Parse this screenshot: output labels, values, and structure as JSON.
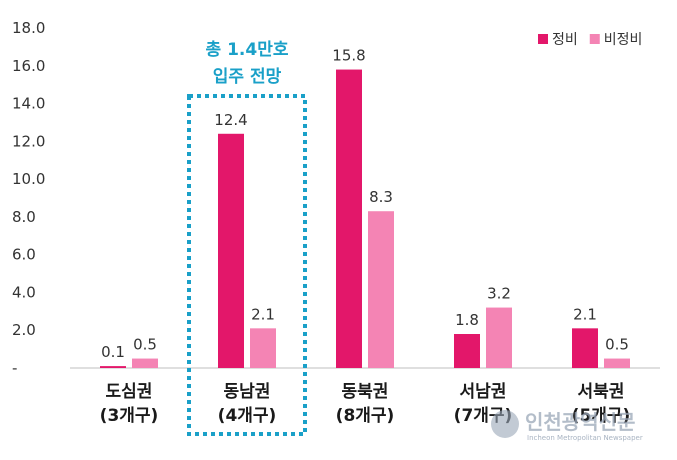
{
  "chart_data": {
    "type": "bar",
    "categories": [
      "도심권",
      "동남권",
      "동북권",
      "서남권",
      "서북권"
    ],
    "category_sublabels": [
      "(3개구)",
      "(4개구)",
      "(8개구)",
      "(7개구)",
      "(5개구)"
    ],
    "series": [
      {
        "name": "정비",
        "values": [
          0.1,
          12.4,
          15.8,
          1.8,
          2.1
        ],
        "color": "#e3176a"
      },
      {
        "name": "비정비",
        "values": [
          0.5,
          2.1,
          8.3,
          3.2,
          0.5
        ],
        "color": "#f484b4"
      }
    ],
    "y_ticks": [
      "-",
      "2.0",
      "4.0",
      "6.0",
      "8.0",
      "10.0",
      "12.0",
      "14.0",
      "16.0",
      "18.0"
    ],
    "ylim": [
      0,
      18
    ],
    "grid": false,
    "legend_position": "top-right",
    "annotation": {
      "lines": [
        "총 1.4만호",
        "입주 전망"
      ],
      "category": "동남권",
      "color": "#1aa0c8"
    }
  },
  "watermark": {
    "text": "인천광역신문",
    "subtext": "Incheon Metropolitan Newspaper"
  }
}
